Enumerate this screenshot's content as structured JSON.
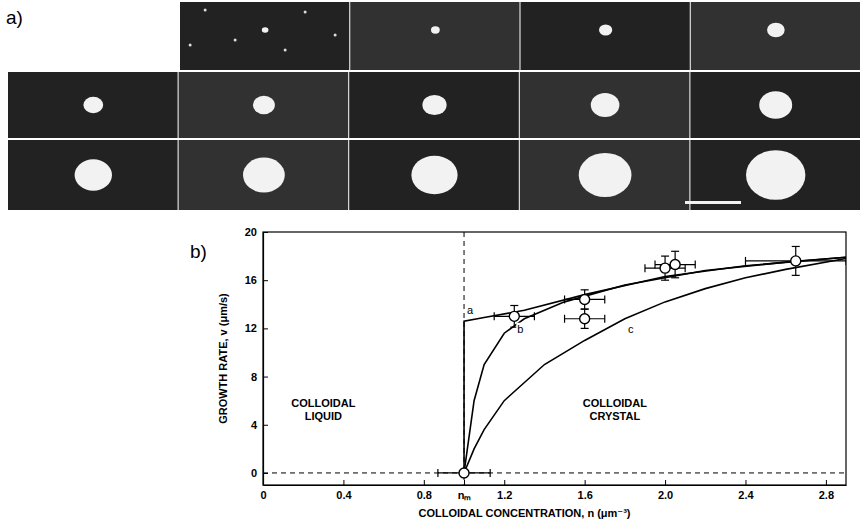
{
  "panel_labels": [
    "a)",
    "b)"
  ],
  "chart_data": {
    "type": "scatter",
    "x_label": "COLLOIDAL CONCENTRATION, n (μm⁻³)",
    "y_label": "GROWTH RATE, v (μm/s)",
    "xlim": [
      0,
      2.9
    ],
    "xticks": [
      0,
      0.4,
      0.8,
      {
        "value": 1.0,
        "label": "nₘ"
      },
      1.2,
      1.6,
      {
        "value": 2,
        "label": "2.0"
      },
      2.4,
      2.8
    ],
    "ylim": [
      -1,
      20
    ],
    "yticks": [
      0,
      4,
      8,
      12,
      16,
      20
    ],
    "marker": "circle",
    "reference_lines": {
      "x": [
        1.0
      ],
      "y": [
        0
      ]
    },
    "annotations": [
      {
        "text": "COLLOIDAL LIQUID",
        "x": 0.3,
        "y": 5.5
      },
      {
        "text": "COLLOIDAL CRYSTAL",
        "x": 1.75,
        "y": 5.5
      }
    ],
    "points": {
      "x": [
        1.0,
        1.25,
        1.6,
        1.6,
        2.0,
        2.05,
        2.65
      ],
      "y": [
        0,
        13,
        14.4,
        12.8,
        17,
        17.3,
        17.6
      ],
      "x_error": [
        0.13,
        0.1,
        0.1,
        0.1,
        0.1,
        0.1,
        0.25
      ],
      "y_error": [
        null,
        0.9,
        0.8,
        0.8,
        1.0,
        1.1,
        1.2
      ]
    },
    "series": [
      {
        "name": "a",
        "type": "line",
        "color": "#000000",
        "x": [
          1.0,
          1.0,
          1.1,
          1.3,
          1.6,
          2.0,
          2.4,
          2.9
        ],
        "values": [
          0,
          12.6,
          12.9,
          13.5,
          14.8,
          16.3,
          17.2,
          17.9
        ]
      },
      {
        "name": "b",
        "type": "line",
        "color": "#000000",
        "x": [
          1.0,
          1.05,
          1.1,
          1.2,
          1.3,
          1.5,
          1.8,
          2.2,
          2.6,
          2.9
        ],
        "values": [
          0,
          6,
          9,
          11.6,
          12.8,
          14.2,
          15.6,
          16.8,
          17.5,
          17.9
        ]
      },
      {
        "name": "c",
        "type": "line",
        "color": "#000000",
        "x": [
          1.0,
          1.05,
          1.1,
          1.2,
          1.4,
          1.6,
          1.8,
          2.0,
          2.2,
          2.4,
          2.6,
          2.9
        ],
        "values": [
          0,
          2,
          3.6,
          6,
          9,
          11,
          12.8,
          14.2,
          15.3,
          16.2,
          16.9,
          17.8
        ]
      }
    ]
  }
}
